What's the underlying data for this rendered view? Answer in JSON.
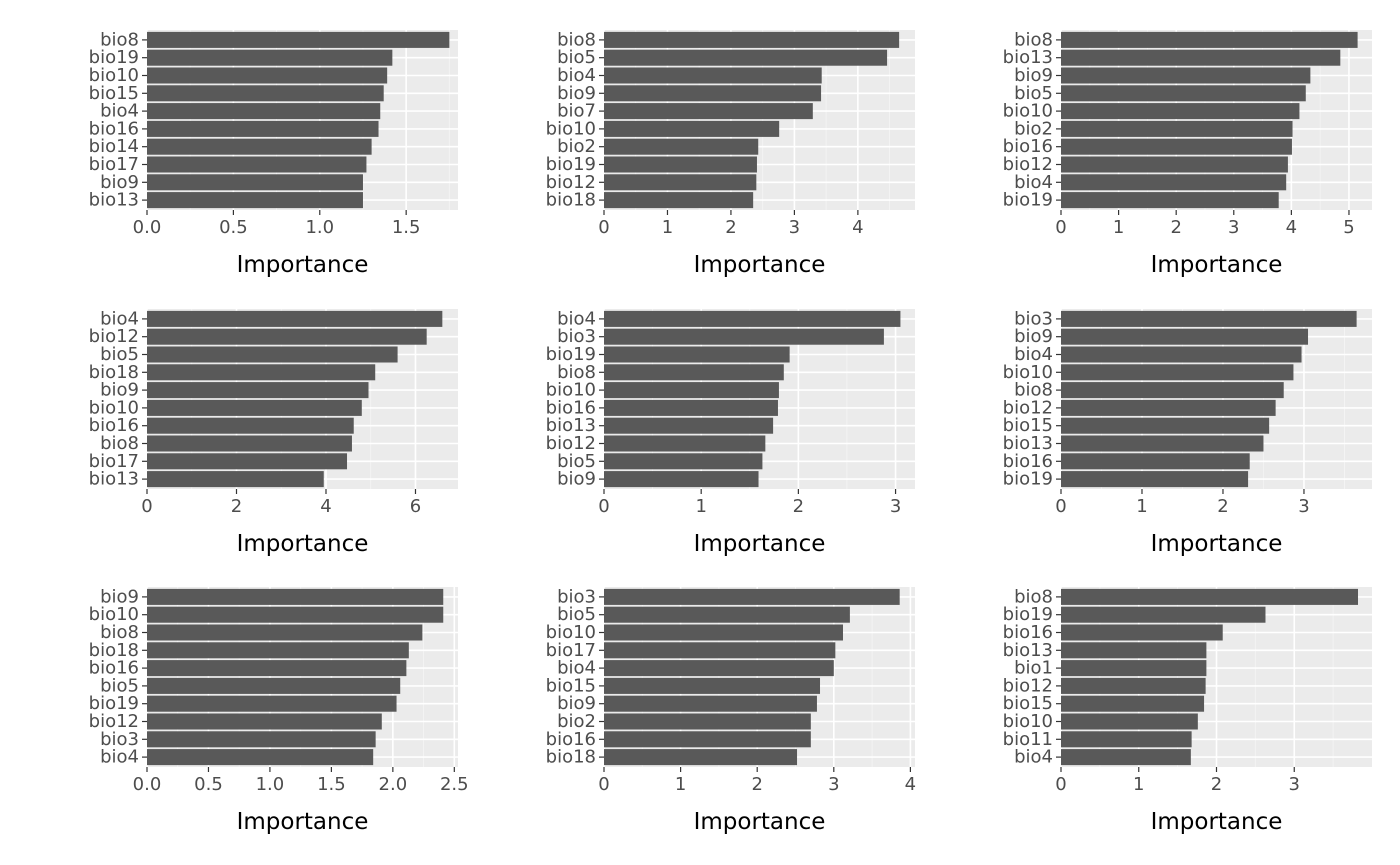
{
  "chart_data": [
    {
      "type": "bar",
      "orientation": "horizontal",
      "xlabel": "Importance",
      "ylabel": "",
      "categories": [
        "bio8",
        "bio19",
        "bio10",
        "bio15",
        "bio4",
        "bio16",
        "bio14",
        "bio17",
        "bio9",
        "bio13"
      ],
      "values": [
        1.75,
        1.42,
        1.39,
        1.37,
        1.35,
        1.34,
        1.3,
        1.27,
        1.25,
        1.25
      ],
      "xlim": [
        0,
        1.8
      ],
      "xticks": [
        0.0,
        0.5,
        1.0,
        1.5
      ],
      "xtick_labels": [
        "0.0",
        "0.5",
        "1.0",
        "1.5"
      ]
    },
    {
      "type": "bar",
      "orientation": "horizontal",
      "xlabel": "Importance",
      "ylabel": "",
      "categories": [
        "bio8",
        "bio5",
        "bio4",
        "bio9",
        "bio7",
        "bio10",
        "bio2",
        "bio19",
        "bio12",
        "bio18"
      ],
      "values": [
        4.65,
        4.46,
        3.43,
        3.42,
        3.29,
        2.76,
        2.43,
        2.41,
        2.4,
        2.35
      ],
      "xlim": [
        0,
        4.9
      ],
      "xticks": [
        0,
        1,
        2,
        3,
        4
      ],
      "xtick_labels": [
        "0",
        "1",
        "2",
        "3",
        "4"
      ]
    },
    {
      "type": "bar",
      "orientation": "horizontal",
      "xlabel": "Importance",
      "ylabel": "",
      "categories": [
        "bio8",
        "bio13",
        "bio9",
        "bio5",
        "bio10",
        "bio2",
        "bio16",
        "bio12",
        "bio4",
        "bio19"
      ],
      "values": [
        5.15,
        4.85,
        4.33,
        4.25,
        4.14,
        4.02,
        4.01,
        3.94,
        3.91,
        3.78
      ],
      "xlim": [
        0,
        5.4
      ],
      "xticks": [
        0,
        1,
        2,
        3,
        4,
        5
      ],
      "xtick_labels": [
        "0",
        "1",
        "2",
        "3",
        "4",
        "5"
      ]
    },
    {
      "type": "bar",
      "orientation": "horizontal",
      "xlabel": "Importance",
      "ylabel": "",
      "categories": [
        "bio4",
        "bio12",
        "bio5",
        "bio18",
        "bio9",
        "bio10",
        "bio16",
        "bio8",
        "bio17",
        "bio13"
      ],
      "values": [
        6.6,
        6.25,
        5.6,
        5.1,
        4.95,
        4.8,
        4.62,
        4.58,
        4.47,
        3.95
      ],
      "xlim": [
        0,
        6.95
      ],
      "xticks": [
        0,
        2,
        4,
        6
      ],
      "xtick_labels": [
        "0",
        "2",
        "4",
        "6"
      ]
    },
    {
      "type": "bar",
      "orientation": "horizontal",
      "xlabel": "Importance",
      "ylabel": "",
      "categories": [
        "bio4",
        "bio3",
        "bio19",
        "bio8",
        "bio10",
        "bio16",
        "bio13",
        "bio12",
        "bio5",
        "bio9"
      ],
      "values": [
        3.05,
        2.88,
        1.91,
        1.85,
        1.8,
        1.79,
        1.74,
        1.66,
        1.63,
        1.59
      ],
      "xlim": [
        0,
        3.2
      ],
      "xticks": [
        0,
        1,
        2,
        3
      ],
      "xtick_labels": [
        "0",
        "1",
        "2",
        "3"
      ]
    },
    {
      "type": "bar",
      "orientation": "horizontal",
      "xlabel": "Importance",
      "ylabel": "",
      "categories": [
        "bio3",
        "bio9",
        "bio4",
        "bio10",
        "bio8",
        "bio12",
        "bio15",
        "bio13",
        "bio16",
        "bio19"
      ],
      "values": [
        3.65,
        3.05,
        2.97,
        2.87,
        2.75,
        2.65,
        2.57,
        2.5,
        2.33,
        2.31
      ],
      "xlim": [
        0,
        3.84
      ],
      "xticks": [
        0,
        1,
        2,
        3
      ],
      "xtick_labels": [
        "0",
        "1",
        "2",
        "3"
      ]
    },
    {
      "type": "bar",
      "orientation": "horizontal",
      "xlabel": "Importance",
      "ylabel": "",
      "categories": [
        "bio9",
        "bio10",
        "bio8",
        "bio18",
        "bio16",
        "bio5",
        "bio19",
        "bio12",
        "bio3",
        "bio4"
      ],
      "values": [
        2.41,
        2.41,
        2.24,
        2.13,
        2.11,
        2.06,
        2.03,
        1.91,
        1.86,
        1.84
      ],
      "xlim": [
        0,
        2.53
      ],
      "xticks": [
        0.0,
        0.5,
        1.0,
        1.5,
        2.0,
        2.5
      ],
      "xtick_labels": [
        "0.0",
        "0.5",
        "1.0",
        "1.5",
        "2.0",
        "2.5"
      ]
    },
    {
      "type": "bar",
      "orientation": "horizontal",
      "xlabel": "Importance",
      "ylabel": "",
      "categories": [
        "bio3",
        "bio5",
        "bio10",
        "bio17",
        "bio4",
        "bio15",
        "bio9",
        "bio2",
        "bio16",
        "bio18"
      ],
      "values": [
        3.86,
        3.21,
        3.12,
        3.02,
        3.0,
        2.82,
        2.78,
        2.7,
        2.7,
        2.52
      ],
      "xlim": [
        0,
        4.06
      ],
      "xticks": [
        0,
        1,
        2,
        3,
        4
      ],
      "xtick_labels": [
        "0",
        "1",
        "2",
        "3",
        "4"
      ]
    },
    {
      "type": "bar",
      "orientation": "horizontal",
      "xlabel": "Importance",
      "ylabel": "",
      "categories": [
        "bio8",
        "bio19",
        "bio16",
        "bio13",
        "bio1",
        "bio12",
        "bio15",
        "bio10",
        "bio11",
        "bio4"
      ],
      "values": [
        3.82,
        2.63,
        2.08,
        1.87,
        1.87,
        1.86,
        1.84,
        1.76,
        1.68,
        1.67
      ],
      "xlim": [
        0,
        4.0
      ],
      "xticks": [
        0,
        1,
        2,
        3
      ],
      "xtick_labels": [
        "0",
        "1",
        "2",
        "3"
      ]
    }
  ]
}
